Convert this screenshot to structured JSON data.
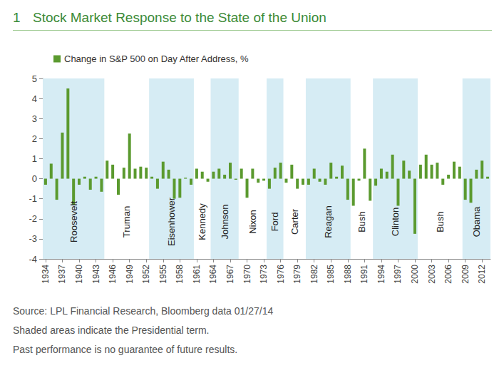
{
  "figure": "1",
  "title": "Stock Market Response to the State of the Union",
  "notes": [
    "Source: LPL Financial Research, Bloomberg data  01/27/14",
    "Shaded areas indicate the Presidential term.",
    "Past performance is no guarantee of future results."
  ],
  "chart_data": {
    "type": "bar",
    "series": [
      {
        "name": "Change in S&P 500 on Day After Address, %",
        "color": "#5b9a2f",
        "values": [
          -0.3,
          0.75,
          -1.05,
          2.3,
          4.5,
          -1.3,
          -0.3,
          0.1,
          -0.55,
          0.1,
          -0.65,
          0.9,
          0.7,
          -0.8,
          0.55,
          2.25,
          0.5,
          0.6,
          0.55,
          0.1,
          -0.5,
          0.85,
          0.45,
          -1,
          -0.95,
          0.05,
          -0.3,
          0.5,
          0.35,
          -0.15,
          0.35,
          0.5,
          0.2,
          0.8,
          -0.05,
          0.5,
          -0.95,
          0.5,
          -0.2,
          -0.1,
          -0.5,
          0.55,
          0.8,
          -0.2,
          0.7,
          -0.5,
          -0.3,
          -0.3,
          0.5,
          -0.15,
          -0.3,
          0.8,
          0.1,
          0.65,
          -1.05,
          -1.35,
          -0.1,
          1.5,
          -1.1,
          -0.35,
          0.5,
          0.35,
          1.2,
          -1.35,
          0.9,
          0.4,
          -2.75,
          0.7,
          1.2,
          0.7,
          0.8,
          -0.3,
          0.2,
          0.85,
          0.6,
          -1.05,
          -1.2,
          0.45,
          0.9,
          0.1
        ]
      }
    ],
    "x": [
      1934,
      1935,
      1936,
      1937,
      1938,
      1939,
      1940,
      1941,
      1942,
      1943,
      1944,
      1945,
      1946,
      1947,
      1948,
      1949,
      1950,
      1951,
      1952,
      1953,
      1954,
      1955,
      1956,
      1957,
      1958,
      1959,
      1960,
      1961,
      1962,
      1963,
      1964,
      1965,
      1966,
      1967,
      1968,
      1969,
      1970,
      1971,
      1972,
      1973,
      1974,
      1975,
      1976,
      1977,
      1978,
      1979,
      1980,
      1981,
      1982,
      1983,
      1984,
      1985,
      1986,
      1987,
      1988,
      1989,
      1990,
      1991,
      1992,
      1993,
      1994,
      1995,
      1996,
      1997,
      1998,
      1999,
      2000,
      2001,
      2002,
      2003,
      2004,
      2005,
      2006,
      2007,
      2008,
      2009,
      2010,
      2011,
      2012,
      2013
    ],
    "xlim": [
      1933.5,
      2013.5
    ],
    "xticks": [
      1934,
      1937,
      1940,
      1943,
      1946,
      1949,
      1952,
      1955,
      1958,
      1961,
      1964,
      1967,
      1970,
      1973,
      1976,
      1979,
      1982,
      1985,
      1988,
      1991,
      1994,
      1997,
      2000,
      2003,
      2006,
      2009,
      2012
    ],
    "ylim": [
      -4,
      5
    ],
    "yticks": [
      -4,
      -3,
      -2,
      -1,
      0,
      1,
      2,
      3,
      4,
      5
    ],
    "grid": false,
    "legend": "top-left",
    "presidents": [
      {
        "name": "Roosevelt",
        "start": 1933.5,
        "end": 1944.5
      },
      {
        "name": "Truman",
        "start": 1944.5,
        "end": 1952.5
      },
      {
        "name": "Eisenhower",
        "start": 1952.5,
        "end": 1960.5
      },
      {
        "name": "Kennedy",
        "start": 1960.5,
        "end": 1963.5
      },
      {
        "name": "Johnson",
        "start": 1963.5,
        "end": 1968.5
      },
      {
        "name": "Nixon",
        "start": 1968.5,
        "end": 1973.5
      },
      {
        "name": "Ford",
        "start": 1973.5,
        "end": 1976.5
      },
      {
        "name": "Carter",
        "start": 1976.5,
        "end": 1980.5
      },
      {
        "name": "Reagan",
        "start": 1980.5,
        "end": 1988.5
      },
      {
        "name": "Bush",
        "start": 1988.5,
        "end": 1992.5
      },
      {
        "name": "Clinton",
        "start": 1992.5,
        "end": 2000.5
      },
      {
        "name": "Bush",
        "start": 2000.5,
        "end": 2008.5
      },
      {
        "name": "Obama",
        "start": 2008.5,
        "end": 2013.5
      }
    ]
  }
}
